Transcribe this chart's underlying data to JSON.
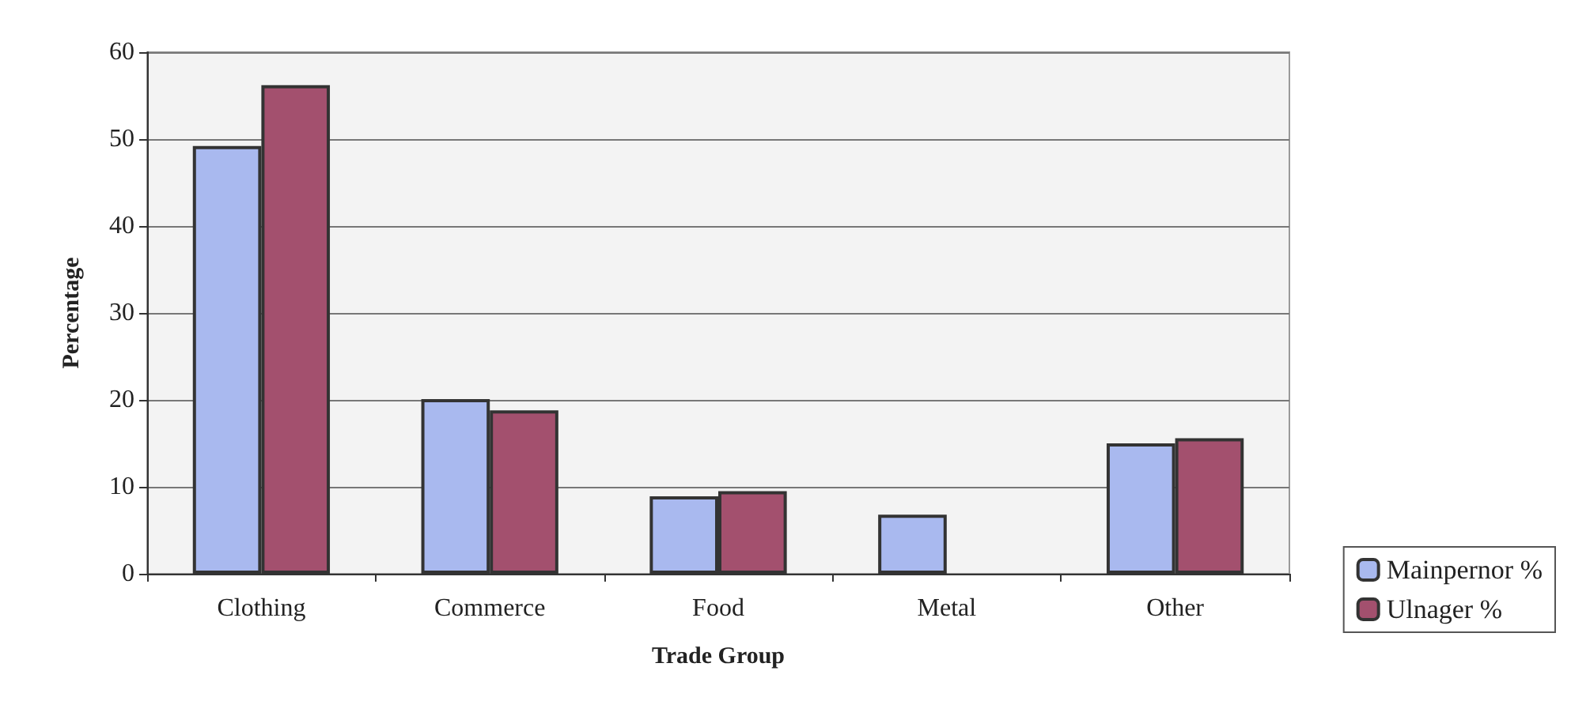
{
  "chart_data": {
    "type": "bar",
    "xlabel": "Trade Group",
    "ylabel": "Percentage",
    "categories": [
      "Clothing",
      "Commerce",
      "Food",
      "Metal",
      "Other"
    ],
    "series": [
      {
        "name": "Mainpernor %",
        "color": "#a9b9ef",
        "values": [
          49.2,
          20.1,
          8.9,
          6.8,
          15.0
        ]
      },
      {
        "name": "Ulnager %",
        "color": "#a3506e",
        "values": [
          56.2,
          18.8,
          9.5,
          null,
          15.6
        ]
      }
    ],
    "ylim": [
      0,
      60
    ],
    "yticks": [
      0,
      10,
      20,
      30,
      40,
      50,
      60
    ],
    "grid": "y",
    "legend": "bottom right"
  }
}
